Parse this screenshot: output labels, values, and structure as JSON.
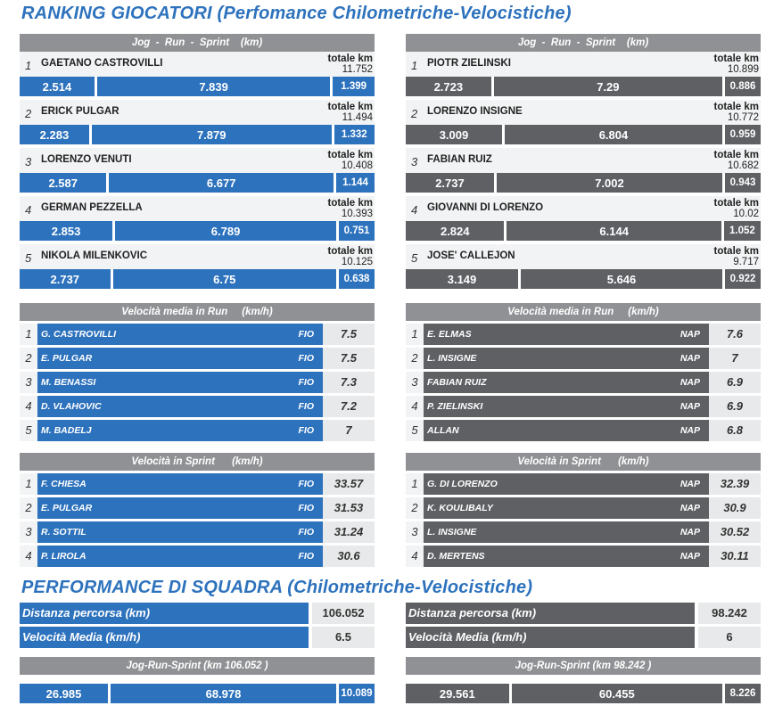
{
  "title_ranking": "RANKING GIOCATORI (Perfomance Chilometriche-Velocistiche)",
  "title_team": "PERFORMANCE DI SQUADRA (Chilometriche-Velocistiche)",
  "totale_label": "totale km",
  "colors": {
    "fio_blue": "#2d72bd",
    "nap_gray": "#5e6064",
    "header_gray": "#8f9194"
  },
  "jrs_header": "Jog  -  Run  -  Sprint    (km)",
  "speed_run_header": "Velocità media in Run     (km/h)",
  "speed_sprint_header": "Velocità in Sprint      (km/h)",
  "fio_km": [
    {
      "rank": "1",
      "name": "GAETANO CASTROVILLI",
      "total": "11.752",
      "jog": "2.514",
      "run": "7.839",
      "sprint": "1.399"
    },
    {
      "rank": "2",
      "name": "ERICK PULGAR",
      "total": "11.494",
      "jog": "2.283",
      "run": "7.879",
      "sprint": "1.332"
    },
    {
      "rank": "3",
      "name": "LORENZO VENUTI",
      "total": "10.408",
      "jog": "2.587",
      "run": "6.677",
      "sprint": "1.144"
    },
    {
      "rank": "4",
      "name": "GERMAN PEZZELLA",
      "total": "10.393",
      "jog": "2.853",
      "run": "6.789",
      "sprint": "0.751"
    },
    {
      "rank": "5",
      "name": "NIKOLA MILENKOVIC",
      "total": "10.125",
      "jog": "2.737",
      "run": "6.75",
      "sprint": "0.638"
    }
  ],
  "nap_km": [
    {
      "rank": "1",
      "name": "PIOTR ZIELINSKI",
      "total": "10.899",
      "jog": "2.723",
      "run": "7.29",
      "sprint": "0.886"
    },
    {
      "rank": "2",
      "name": "LORENZO INSIGNE",
      "total": "10.772",
      "jog": "3.009",
      "run": "6.804",
      "sprint": "0.959"
    },
    {
      "rank": "3",
      "name": "FABIAN RUIZ",
      "total": "10.682",
      "jog": "2.737",
      "run": "7.002",
      "sprint": "0.943"
    },
    {
      "rank": "4",
      "name": "GIOVANNI DI LORENZO",
      "total": "10.02",
      "jog": "2.824",
      "run": "6.144",
      "sprint": "1.052"
    },
    {
      "rank": "5",
      "name": "JOSE' CALLEJON",
      "total": "9.717",
      "jog": "3.149",
      "run": "5.646",
      "sprint": "0.922"
    }
  ],
  "fio_run_speed": [
    {
      "rank": "1",
      "name": "G. CASTROVILLI",
      "team": "FIO",
      "value": "7.5"
    },
    {
      "rank": "2",
      "name": "E. PULGAR",
      "team": "FIO",
      "value": "7.5"
    },
    {
      "rank": "3",
      "name": "M. BENASSI",
      "team": "FIO",
      "value": "7.3"
    },
    {
      "rank": "4",
      "name": "D. VLAHOVIC",
      "team": "FIO",
      "value": "7.2"
    },
    {
      "rank": "5",
      "name": "M. BADELJ",
      "team": "FIO",
      "value": "7"
    }
  ],
  "nap_run_speed": [
    {
      "rank": "1",
      "name": "E. ELMAS",
      "team": "NAP",
      "value": "7.6"
    },
    {
      "rank": "2",
      "name": "L. INSIGNE",
      "team": "NAP",
      "value": "7"
    },
    {
      "rank": "3",
      "name": "FABIAN RUIZ",
      "team": "NAP",
      "value": "6.9"
    },
    {
      "rank": "4",
      "name": "P. ZIELINSKI",
      "team": "NAP",
      "value": "6.9"
    },
    {
      "rank": "5",
      "name": "ALLAN",
      "team": "NAP",
      "value": "6.8"
    }
  ],
  "fio_sprint_speed": [
    {
      "rank": "1",
      "name": "F. CHIESA",
      "team": "FIO",
      "value": "33.57"
    },
    {
      "rank": "2",
      "name": "E. PULGAR",
      "team": "FIO",
      "value": "31.53"
    },
    {
      "rank": "3",
      "name": "R. SOTTIL",
      "team": "FIO",
      "value": "31.24"
    },
    {
      "rank": "4",
      "name": "P. LIROLA",
      "team": "FIO",
      "value": "30.6"
    }
  ],
  "nap_sprint_speed": [
    {
      "rank": "1",
      "name": "G. DI LORENZO",
      "team": "NAP",
      "value": "32.39"
    },
    {
      "rank": "2",
      "name": "K. KOULIBALY",
      "team": "NAP",
      "value": "30.9"
    },
    {
      "rank": "3",
      "name": "L. INSIGNE",
      "team": "NAP",
      "value": "30.52"
    },
    {
      "rank": "4",
      "name": "D. MERTENS",
      "team": "NAP",
      "value": "30.11"
    }
  ],
  "team_fio": {
    "distance_label": "Distanza percorsa (km)",
    "distance": "106.052",
    "speed_label": "Velocità Media (km/h)",
    "speed": "6.5",
    "jrs_header": "Jog-Run-Sprint (km 106.052 )",
    "jog": "26.985",
    "run": "68.978",
    "sprint": "10.089"
  },
  "team_nap": {
    "distance_label": "Distanza percorsa (km)",
    "distance": "98.242",
    "speed_label": "Velocità Media (km/h)",
    "speed": "6",
    "jrs_header": "Jog-Run-Sprint (km 98.242 )",
    "jog": "29.561",
    "run": "60.455",
    "sprint": "8.226"
  }
}
